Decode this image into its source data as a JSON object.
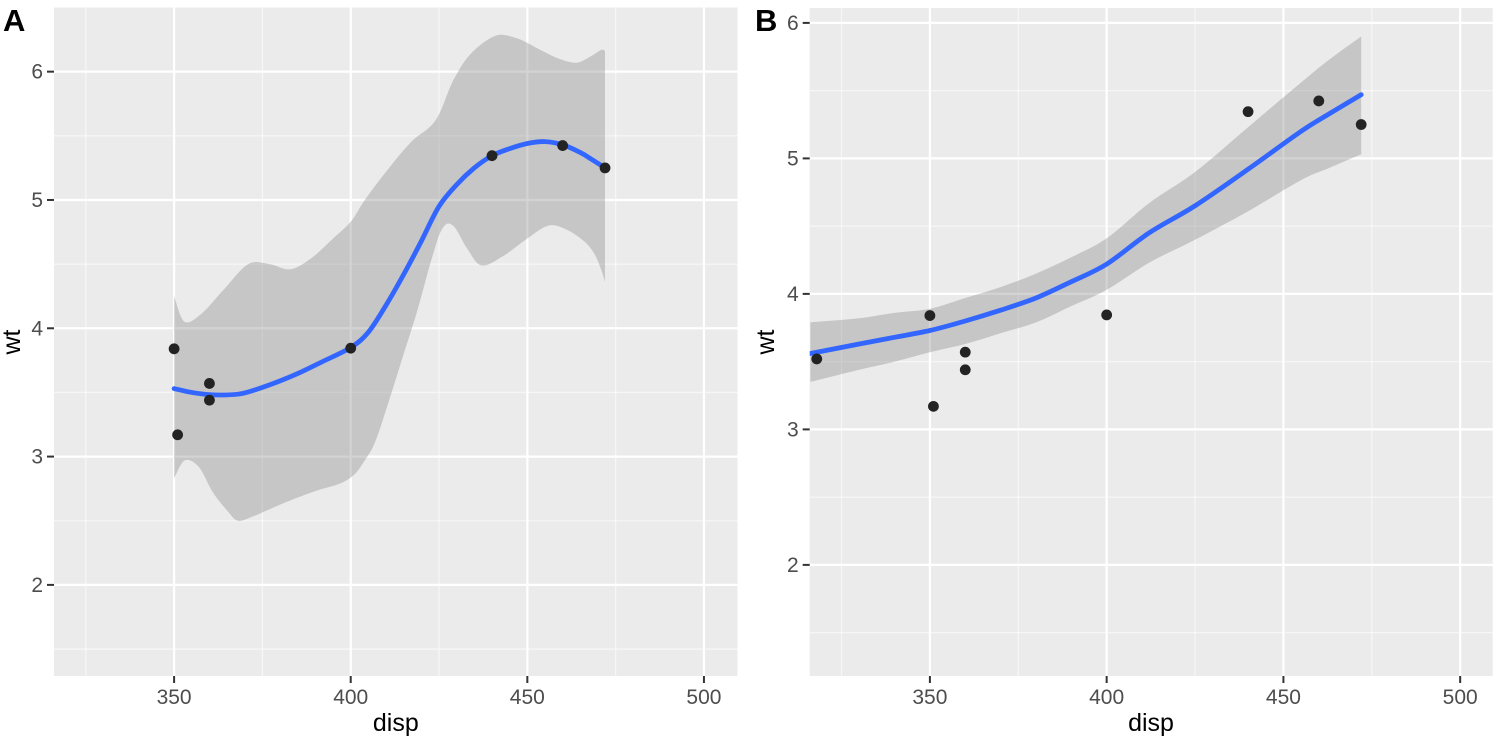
{
  "figure": {
    "kind": "ggplot-style two-panel scatter with smoothed trend and confidence ribbon"
  },
  "chart_data": {
    "type": "scatter",
    "panels": [
      {
        "label": "A",
        "x_axis_label": "disp",
        "y_axis_label": "wt",
        "x_ticks": [
          350,
          400,
          450,
          500
        ],
        "y_ticks": [
          2,
          3,
          4,
          5,
          6
        ],
        "x_minor_ticks": [
          325,
          375,
          425,
          475
        ],
        "y_minor_ticks": [
          1.5,
          2.5,
          3.5,
          4.5,
          5.5
        ],
        "x_domain": [
          316,
          509.5
        ],
        "y_domain": [
          1.29,
          6.5
        ],
        "grid": "on",
        "legend": "none",
        "points": [
          [
            350,
            3.84
          ],
          [
            351,
            3.17
          ],
          [
            360,
            3.57
          ],
          [
            360,
            3.44
          ],
          [
            400,
            3.845
          ],
          [
            440,
            5.345
          ],
          [
            460,
            5.424
          ],
          [
            472,
            5.25
          ]
        ],
        "curve": [
          [
            350,
            3.53
          ],
          [
            354,
            3.505
          ],
          [
            359,
            3.485
          ],
          [
            364,
            3.48
          ],
          [
            369,
            3.49
          ],
          [
            374,
            3.53
          ],
          [
            380,
            3.59
          ],
          [
            386,
            3.66
          ],
          [
            392,
            3.74
          ],
          [
            400,
            3.85
          ],
          [
            405,
            3.97
          ],
          [
            410,
            4.18
          ],
          [
            415,
            4.42
          ],
          [
            420,
            4.68
          ],
          [
            425,
            4.95
          ],
          [
            430,
            5.12
          ],
          [
            435,
            5.25
          ],
          [
            440,
            5.345
          ],
          [
            445,
            5.4
          ],
          [
            450,
            5.44
          ],
          [
            455,
            5.455
          ],
          [
            460,
            5.43
          ],
          [
            465,
            5.37
          ],
          [
            468,
            5.32
          ],
          [
            472,
            5.25
          ]
        ],
        "ribbon_upper": [
          [
            350,
            4.25
          ],
          [
            353,
            4.05
          ],
          [
            358,
            4.12
          ],
          [
            364,
            4.3
          ],
          [
            371,
            4.5
          ],
          [
            377,
            4.5
          ],
          [
            383,
            4.46
          ],
          [
            389,
            4.55
          ],
          [
            395,
            4.7
          ],
          [
            400,
            4.83
          ],
          [
            404,
            5.0
          ],
          [
            410,
            5.22
          ],
          [
            417,
            5.45
          ],
          [
            424,
            5.62
          ],
          [
            429,
            5.93
          ],
          [
            434,
            6.14
          ],
          [
            441,
            6.28
          ],
          [
            447,
            6.26
          ],
          [
            453,
            6.18
          ],
          [
            459,
            6.1
          ],
          [
            464,
            6.07
          ],
          [
            468,
            6.12
          ],
          [
            471,
            6.17
          ],
          [
            472,
            6.16
          ]
        ],
        "ribbon_lower": [
          [
            350,
            2.83
          ],
          [
            353,
            2.97
          ],
          [
            357,
            2.92
          ],
          [
            361,
            2.72
          ],
          [
            365,
            2.58
          ],
          [
            368,
            2.5
          ],
          [
            372,
            2.53
          ],
          [
            377,
            2.59
          ],
          [
            384,
            2.67
          ],
          [
            391,
            2.74
          ],
          [
            397,
            2.79
          ],
          [
            401,
            2.86
          ],
          [
            404,
            2.97
          ],
          [
            407,
            3.12
          ],
          [
            411,
            3.45
          ],
          [
            415,
            3.8
          ],
          [
            419,
            4.15
          ],
          [
            423,
            4.55
          ],
          [
            426,
            4.78
          ],
          [
            429,
            4.8
          ],
          [
            433,
            4.62
          ],
          [
            437,
            4.49
          ],
          [
            443,
            4.56
          ],
          [
            450,
            4.7
          ],
          [
            456,
            4.8
          ],
          [
            461,
            4.77
          ],
          [
            466,
            4.68
          ],
          [
            469,
            4.58
          ],
          [
            471,
            4.45
          ],
          [
            472,
            4.36
          ]
        ]
      },
      {
        "label": "B",
        "x_axis_label": "disp",
        "y_axis_label": "wt",
        "x_ticks": [
          350,
          400,
          450,
          500
        ],
        "y_ticks": [
          2,
          3,
          4,
          5,
          6
        ],
        "x_minor_ticks": [
          325,
          375,
          425,
          475
        ],
        "y_minor_ticks": [
          1.5,
          2.5,
          3.5,
          4.5,
          5.5
        ],
        "x_domain": [
          316,
          509.2
        ],
        "y_domain": [
          1.18,
          6.11
        ],
        "grid": "on",
        "legend": "none",
        "points": [
          [
            318,
            3.52
          ],
          [
            350,
            3.84
          ],
          [
            351,
            3.17
          ],
          [
            360,
            3.57
          ],
          [
            360,
            3.44
          ],
          [
            400,
            3.845
          ],
          [
            440,
            5.345
          ],
          [
            460,
            5.424
          ],
          [
            472,
            5.25
          ]
        ],
        "curve": [
          [
            316.2,
            3.56
          ],
          [
            330,
            3.63
          ],
          [
            340,
            3.68
          ],
          [
            350,
            3.73
          ],
          [
            360,
            3.8
          ],
          [
            370,
            3.88
          ],
          [
            380,
            3.97
          ],
          [
            390,
            4.09
          ],
          [
            400,
            4.22
          ],
          [
            412,
            4.45
          ],
          [
            425,
            4.65
          ],
          [
            440,
            4.92
          ],
          [
            455,
            5.2
          ],
          [
            463,
            5.33
          ],
          [
            472,
            5.47
          ]
        ],
        "ribbon_upper": [
          [
            316.2,
            3.79
          ],
          [
            330,
            3.82
          ],
          [
            340,
            3.86
          ],
          [
            350,
            3.89
          ],
          [
            360,
            3.97
          ],
          [
            370,
            4.05
          ],
          [
            380,
            4.15
          ],
          [
            390,
            4.27
          ],
          [
            400,
            4.41
          ],
          [
            412,
            4.67
          ],
          [
            425,
            4.9
          ],
          [
            440,
            5.23
          ],
          [
            455,
            5.56
          ],
          [
            463,
            5.73
          ],
          [
            472,
            5.9
          ]
        ],
        "ribbon_lower": [
          [
            316.2,
            3.35
          ],
          [
            330,
            3.44
          ],
          [
            340,
            3.5
          ],
          [
            350,
            3.57
          ],
          [
            360,
            3.63
          ],
          [
            370,
            3.71
          ],
          [
            380,
            3.79
          ],
          [
            390,
            3.91
          ],
          [
            400,
            4.03
          ],
          [
            412,
            4.23
          ],
          [
            425,
            4.4
          ],
          [
            440,
            4.61
          ],
          [
            455,
            4.84
          ],
          [
            463,
            4.93
          ],
          [
            472,
            5.03
          ]
        ]
      }
    ],
    "style": {
      "panel_background": "#EBEBEB",
      "grid_major_color": "#FFFFFF",
      "grid_minor_color": "#FFFFFF",
      "ribbon_color": "rgba(125,125,125,0.34)",
      "smooth_line_color": "#3366FF",
      "point_color": "#232323",
      "tick_mark_color": "#333333",
      "tick_label_color": "#4D4D4D",
      "axis_title_color": "#000000",
      "panel_label_color": "#000000"
    }
  }
}
